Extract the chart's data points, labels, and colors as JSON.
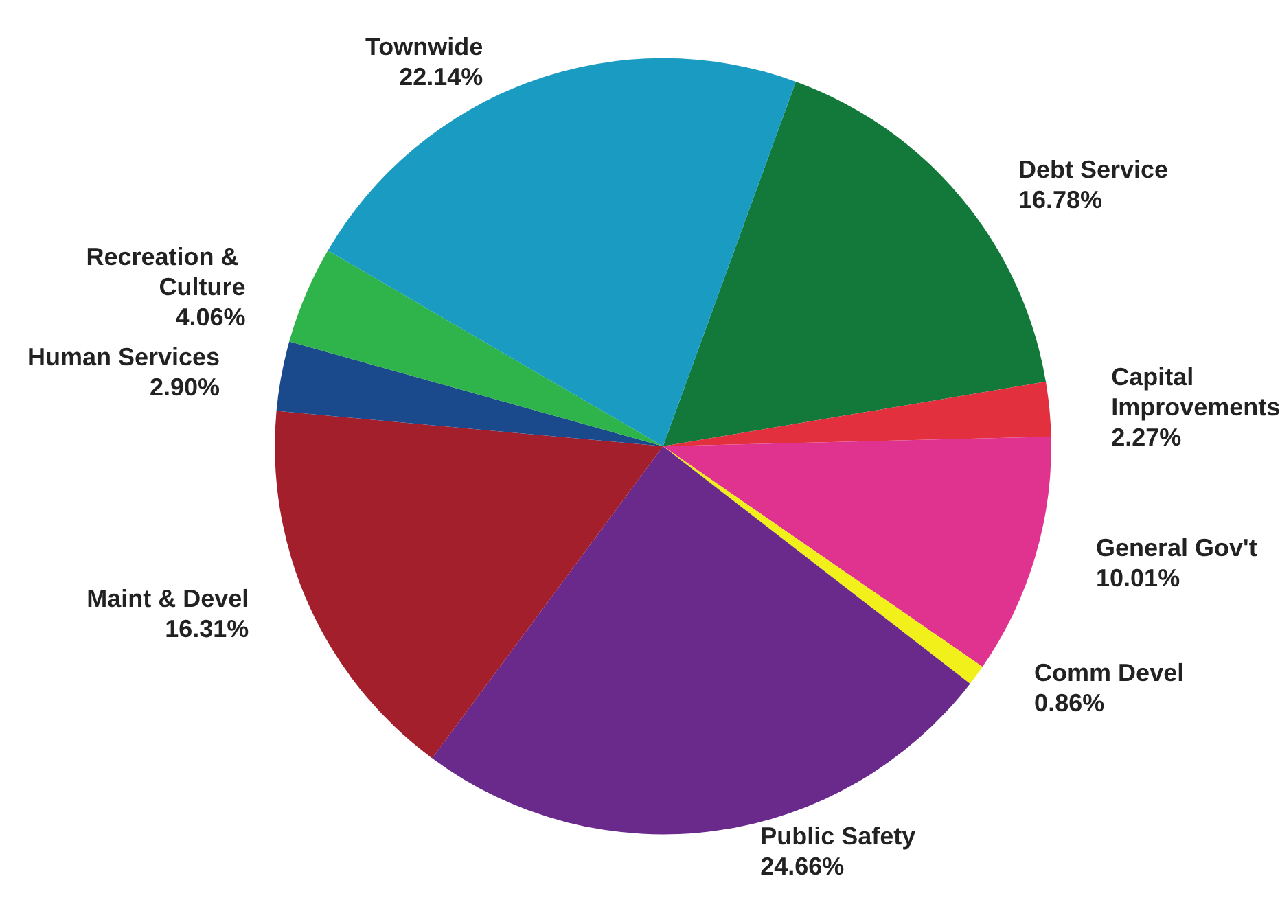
{
  "chart_data": {
    "type": "pie",
    "categories": [
      "Debt Service",
      "Capital Improvements",
      "General Gov't",
      "Comm Devel",
      "Public Safety",
      "Maint & Devel",
      "Human Services",
      "Recreation & Culture",
      "Townwide"
    ],
    "values": [
      16.78,
      2.27,
      10.01,
      0.86,
      24.66,
      16.31,
      2.9,
      4.06,
      22.14
    ],
    "value_labels": [
      "16.78%",
      "2.27%",
      "10.01%",
      "0.86%",
      "24.66%",
      "16.31%",
      "2.90%",
      "4.06%",
      "22.14%"
    ],
    "colors": [
      "#13793b",
      "#e2303f",
      "#e0338f",
      "#f2f01a",
      "#6a2a8c",
      "#a31f2b",
      "#1b4a8c",
      "#2fb34b",
      "#1a9bc2"
    ]
  }
}
